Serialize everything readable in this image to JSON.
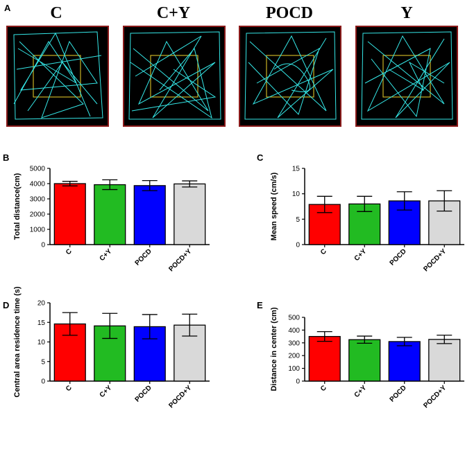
{
  "figure": {
    "panel_a": {
      "label": "A",
      "groups": [
        {
          "title": "C"
        },
        {
          "title": "C+Y"
        },
        {
          "title": "POCD"
        },
        {
          "title": "Y"
        }
      ]
    }
  },
  "colors": {
    "C": "#ff0000",
    "C+Y": "#22bb22",
    "POCD": "#0000ff",
    "POCD+Y": "#d9d9d9",
    "track": "#35e8e8",
    "arena_border": "#8b1a1a",
    "center_zone": "#c9b225"
  },
  "chart_data": [
    {
      "panel": "B",
      "type": "bar",
      "categories": [
        "C",
        "C+Y",
        "POCD",
        "POCD+Y"
      ],
      "values": [
        4000,
        3930,
        3870,
        3980
      ],
      "errors": [
        150,
        320,
        330,
        200
      ],
      "ylabel": "Total distance(cm)",
      "ylim": [
        0,
        5000
      ],
      "yticks": [
        "0",
        "1000",
        "2000",
        "3000",
        "4000",
        "5000"
      ]
    },
    {
      "panel": "C",
      "type": "bar",
      "categories": [
        "C",
        "C+Y",
        "POCD",
        "POCD+Y"
      ],
      "values": [
        7.9,
        8.0,
        8.6,
        8.6
      ],
      "errors": [
        1.6,
        1.5,
        1.8,
        2.0
      ],
      "ylabel": "Mean speed (cm/s)",
      "ylim": [
        0,
        15
      ],
      "yticks": [
        "0",
        "5",
        "10",
        "15"
      ]
    },
    {
      "panel": "D",
      "type": "bar",
      "categories": [
        "C",
        "C+Y",
        "POCD",
        "POCD+Y"
      ],
      "values": [
        14.6,
        14.1,
        13.9,
        14.3
      ],
      "errors": [
        2.9,
        3.2,
        3.1,
        2.8
      ],
      "ylabel": "Central area residence time (s)",
      "ylim": [
        0,
        20
      ],
      "yticks": [
        "0",
        "5",
        "10",
        "15",
        "20"
      ]
    },
    {
      "panel": "E",
      "type": "bar",
      "categories": [
        "C",
        "C+Y",
        "POCD",
        "POCD+Y"
      ],
      "values": [
        350,
        325,
        310,
        327
      ],
      "errors": [
        38,
        28,
        33,
        33
      ],
      "ylabel": "Distance in center (cm)",
      "ylim": [
        0,
        500
      ],
      "yticks": [
        "0",
        "100",
        "200",
        "300",
        "400",
        "500"
      ]
    }
  ]
}
